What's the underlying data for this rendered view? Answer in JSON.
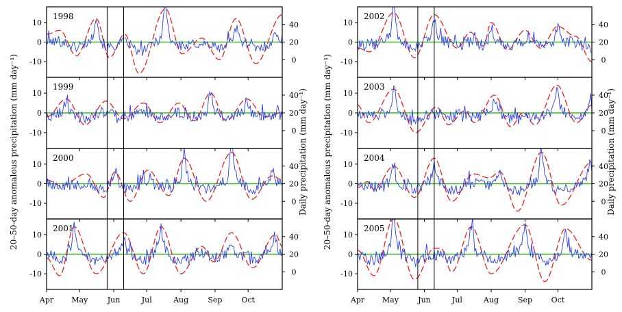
{
  "figure": {
    "left_ylabel": "20–50-day anomalous precipitation (mm day⁻¹)",
    "right_ylabel": "Daily precipitation (mm day⁻¹)"
  },
  "colors": {
    "blue_line": "#2a3cf0",
    "red_dash": "#e8211a",
    "zero_line": "#3fb81f",
    "frame": "#000000"
  },
  "chart_data": [
    {
      "type": "line",
      "title": "1998",
      "left_ylim": [
        -18,
        18
      ],
      "left_yticks": [
        -10,
        0,
        10
      ],
      "right_ylim": [
        -20,
        60
      ],
      "right_yticks": [
        0,
        20,
        40
      ],
      "x_range_days": [
        0,
        214
      ],
      "xticks": [
        "Apr",
        "May",
        "Jun",
        "Jul",
        "Aug",
        "Sep",
        "Oct"
      ],
      "xtick_days": [
        0,
        30,
        61,
        91,
        122,
        153,
        183
      ],
      "vlines_days": [
        55,
        70
      ],
      "red_extrema": [
        [
          0,
          4
        ],
        [
          12,
          6
        ],
        [
          27,
          -7
        ],
        [
          45,
          12
        ],
        [
          57,
          -8
        ],
        [
          71,
          4
        ],
        [
          84,
          -16
        ],
        [
          108,
          17
        ],
        [
          123,
          -6
        ],
        [
          141,
          2
        ],
        [
          157,
          -9
        ],
        [
          172,
          12
        ],
        [
          190,
          -11
        ],
        [
          214,
          14
        ]
      ],
      "blue_seed": 101,
      "blue_events": [
        [
          45,
          12
        ],
        [
          108,
          16
        ],
        [
          172,
          6
        ],
        [
          208,
          3
        ]
      ]
    },
    {
      "type": "line",
      "title": "1999",
      "left_ylim": [
        -18,
        18
      ],
      "left_yticks": [
        -10,
        0,
        10
      ],
      "right_ylim": [
        -20,
        60
      ],
      "right_yticks": [
        0,
        20,
        40
      ],
      "x_range_days": [
        0,
        214
      ],
      "xticks": [
        "Apr",
        "May",
        "Jun",
        "Jul",
        "Aug",
        "Sep",
        "Oct"
      ],
      "xtick_days": [
        0,
        30,
        61,
        91,
        122,
        153,
        183
      ],
      "vlines_days": [
        55,
        70
      ],
      "red_extrema": [
        [
          0,
          -2
        ],
        [
          18,
          7
        ],
        [
          35,
          -6
        ],
        [
          54,
          6
        ],
        [
          70,
          -3
        ],
        [
          88,
          5
        ],
        [
          103,
          -5
        ],
        [
          120,
          5
        ],
        [
          134,
          -4
        ],
        [
          149,
          10
        ],
        [
          163,
          -4
        ],
        [
          182,
          7
        ],
        [
          198,
          -2
        ],
        [
          214,
          0
        ]
      ],
      "blue_seed": 202,
      "blue_events": [
        [
          18,
          4
        ],
        [
          149,
          9
        ],
        [
          182,
          6
        ]
      ]
    },
    {
      "type": "line",
      "title": "2000",
      "left_ylim": [
        -18,
        18
      ],
      "left_yticks": [
        -10,
        0,
        10
      ],
      "right_ylim": [
        -20,
        60
      ],
      "right_yticks": [
        0,
        20,
        40
      ],
      "x_range_days": [
        0,
        214
      ],
      "xticks": [
        "Apr",
        "May",
        "Jun",
        "Jul",
        "Aug",
        "Sep",
        "Oct"
      ],
      "xtick_days": [
        0,
        30,
        61,
        91,
        122,
        153,
        183
      ],
      "vlines_days": [
        55,
        70
      ],
      "red_extrema": [
        [
          0,
          2
        ],
        [
          13,
          -1
        ],
        [
          36,
          5
        ],
        [
          52,
          -7
        ],
        [
          62,
          6
        ],
        [
          76,
          -9
        ],
        [
          92,
          7
        ],
        [
          111,
          -6
        ],
        [
          125,
          13
        ],
        [
          145,
          -9
        ],
        [
          168,
          16
        ],
        [
          186,
          -8
        ],
        [
          205,
          4
        ],
        [
          214,
          2
        ]
      ],
      "blue_seed": 303,
      "blue_events": [
        [
          62,
          7
        ],
        [
          125,
          14
        ],
        [
          168,
          16
        ],
        [
          205,
          5
        ]
      ]
    },
    {
      "type": "line",
      "title": "2001",
      "left_ylim": [
        -18,
        18
      ],
      "left_yticks": [
        -10,
        0,
        10
      ],
      "right_ylim": [
        -20,
        60
      ],
      "right_yticks": [
        0,
        20,
        40
      ],
      "x_range_days": [
        0,
        214
      ],
      "xticks": [
        "Apr",
        "May",
        "Jun",
        "Jul",
        "Aug",
        "Sep",
        "Oct"
      ],
      "xtick_days": [
        0,
        30,
        61,
        91,
        122,
        153,
        183
      ],
      "vlines_days": [
        55,
        70
      ],
      "red_extrema": [
        [
          0,
          -2
        ],
        [
          12,
          -11
        ],
        [
          25,
          14
        ],
        [
          45,
          -10
        ],
        [
          70,
          11
        ],
        [
          88,
          -10
        ],
        [
          104,
          14
        ],
        [
          122,
          -10
        ],
        [
          141,
          4
        ],
        [
          152,
          -4
        ],
        [
          168,
          11
        ],
        [
          187,
          -7
        ],
        [
          208,
          10
        ],
        [
          214,
          4
        ]
      ],
      "blue_seed": 404,
      "blue_events": [
        [
          25,
          13
        ],
        [
          70,
          6
        ],
        [
          104,
          11
        ],
        [
          168,
          5
        ],
        [
          208,
          6
        ]
      ]
    },
    {
      "type": "line",
      "title": "2002",
      "left_ylim": [
        -18,
        18
      ],
      "left_yticks": [
        -10,
        0,
        10
      ],
      "right_ylim": [
        -20,
        60
      ],
      "right_yticks": [
        0,
        20,
        40
      ],
      "x_range_days": [
        0,
        214
      ],
      "xticks": [
        "Apr",
        "May",
        "Jun",
        "Jul",
        "Aug",
        "Sep",
        "Oct"
      ],
      "xtick_days": [
        0,
        30,
        61,
        91,
        122,
        153,
        183
      ],
      "vlines_days": [
        55,
        70
      ],
      "red_extrema": [
        [
          0,
          -3
        ],
        [
          11,
          -5
        ],
        [
          33,
          15
        ],
        [
          52,
          -8
        ],
        [
          70,
          14
        ],
        [
          91,
          -3
        ],
        [
          103,
          5
        ],
        [
          115,
          -2
        ],
        [
          122,
          10
        ],
        [
          137,
          -4
        ],
        [
          153,
          6
        ],
        [
          167,
          -3
        ],
        [
          183,
          8
        ],
        [
          199,
          3
        ],
        [
          214,
          -10
        ]
      ],
      "blue_seed": 505,
      "blue_events": [
        [
          33,
          16
        ],
        [
          70,
          8
        ],
        [
          122,
          6
        ],
        [
          183,
          7
        ]
      ]
    },
    {
      "type": "line",
      "title": "2003",
      "left_ylim": [
        -18,
        18
      ],
      "left_yticks": [
        -10,
        0,
        10
      ],
      "right_ylim": [
        -20,
        60
      ],
      "right_yticks": [
        0,
        20,
        40
      ],
      "x_range_days": [
        0,
        214
      ],
      "xticks": [
        "Apr",
        "May",
        "Jun",
        "Jul",
        "Aug",
        "Sep",
        "Oct"
      ],
      "xtick_days": [
        0,
        30,
        61,
        91,
        122,
        153,
        183
      ],
      "vlines_days": [
        55,
        70
      ],
      "red_extrema": [
        [
          0,
          4
        ],
        [
          10,
          -5
        ],
        [
          33,
          12
        ],
        [
          53,
          -10
        ],
        [
          72,
          3
        ],
        [
          83,
          -6
        ],
        [
          98,
          1
        ],
        [
          107,
          -5
        ],
        [
          125,
          9
        ],
        [
          140,
          -7
        ],
        [
          151,
          0
        ],
        [
          162,
          -6
        ],
        [
          182,
          14
        ],
        [
          200,
          -5
        ],
        [
          214,
          4
        ]
      ],
      "blue_seed": 606,
      "blue_events": [
        [
          33,
          10
        ],
        [
          125,
          7
        ],
        [
          182,
          11
        ],
        [
          212,
          5
        ]
      ]
    },
    {
      "type": "line",
      "title": "2004",
      "left_ylim": [
        -18,
        18
      ],
      "left_yticks": [
        -10,
        0,
        10
      ],
      "right_ylim": [
        -20,
        60
      ],
      "right_yticks": [
        0,
        20,
        40
      ],
      "x_range_days": [
        0,
        214
      ],
      "xticks": [
        "Apr",
        "May",
        "Jun",
        "Jul",
        "Aug",
        "Sep",
        "Oct"
      ],
      "xtick_days": [
        0,
        30,
        61,
        91,
        122,
        153,
        183
      ],
      "vlines_days": [
        55,
        70
      ],
      "red_extrema": [
        [
          0,
          -2
        ],
        [
          9,
          1
        ],
        [
          15,
          -3
        ],
        [
          33,
          9
        ],
        [
          52,
          -7
        ],
        [
          70,
          13
        ],
        [
          86,
          -9
        ],
        [
          106,
          5
        ],
        [
          120,
          3
        ],
        [
          130,
          6
        ],
        [
          146,
          -14
        ],
        [
          168,
          16
        ],
        [
          186,
          -11
        ],
        [
          214,
          11
        ]
      ],
      "blue_seed": 707,
      "blue_events": [
        [
          33,
          9
        ],
        [
          70,
          8
        ],
        [
          130,
          7
        ],
        [
          168,
          13
        ],
        [
          212,
          8
        ]
      ]
    },
    {
      "type": "line",
      "title": "2005",
      "left_ylim": [
        -18,
        18
      ],
      "left_yticks": [
        -10,
        0,
        10
      ],
      "right_ylim": [
        -20,
        60
      ],
      "right_yticks": [
        0,
        20,
        40
      ],
      "x_range_days": [
        0,
        214
      ],
      "xticks": [
        "Apr",
        "May",
        "Jun",
        "Jul",
        "Aug",
        "Sep",
        "Oct"
      ],
      "xtick_days": [
        0,
        30,
        61,
        91,
        122,
        153,
        183
      ],
      "vlines_days": [
        55,
        70
      ],
      "red_extrema": [
        [
          0,
          2
        ],
        [
          15,
          -11
        ],
        [
          33,
          18
        ],
        [
          52,
          -13
        ],
        [
          70,
          3
        ],
        [
          76,
          3
        ],
        [
          86,
          -9
        ],
        [
          104,
          14
        ],
        [
          122,
          -10
        ],
        [
          153,
          15
        ],
        [
          171,
          -14
        ],
        [
          190,
          13
        ],
        [
          214,
          -3
        ]
      ],
      "blue_seed": 808,
      "blue_events": [
        [
          33,
          19
        ],
        [
          104,
          14
        ],
        [
          153,
          13
        ],
        [
          190,
          9
        ]
      ]
    }
  ]
}
